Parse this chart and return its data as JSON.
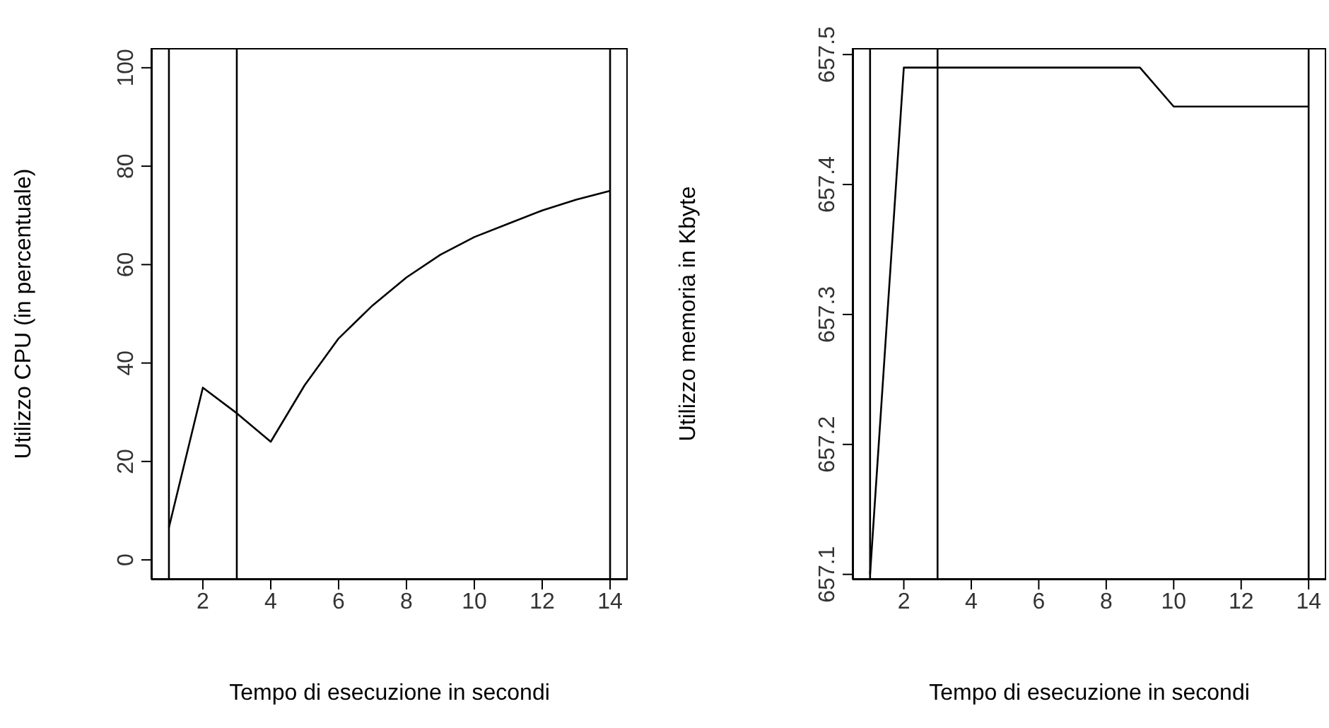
{
  "chart_data": [
    {
      "type": "line",
      "xlabel": "Tempo di esecuzione in secondi",
      "ylabel": "Utilizzo CPU (in percentuale)",
      "x": [
        1,
        2,
        3,
        4,
        5,
        6,
        7,
        8,
        9,
        10,
        11,
        12,
        13,
        14
      ],
      "series": [
        {
          "color": "#000000",
          "values": [
            6.6,
            35,
            29.8,
            24,
            35.5,
            45,
            51.7,
            57.4,
            62,
            65.6,
            68.3,
            71,
            73.2,
            75
          ]
        }
      ],
      "xlim": [
        0.48,
        14.52
      ],
      "xticks": [
        2,
        4,
        6,
        8,
        10,
        12,
        14
      ],
      "ylim": [
        -4,
        104
      ],
      "yticks": [
        0,
        20,
        40,
        60,
        80,
        100
      ],
      "grid": false,
      "marker": "none",
      "line_style": "solid",
      "ref_lines": [
        {
          "axis": "x",
          "value": 1,
          "color": "#000000"
        },
        {
          "axis": "x",
          "value": 3,
          "color": "#000000"
        },
        {
          "axis": "x",
          "value": 14,
          "color": "#000000"
        }
      ]
    },
    {
      "type": "line",
      "xlabel": "Tempo di esecuzione in secondi",
      "ylabel": "Utilizzo memoria in Kbyte",
      "x": [
        1,
        2,
        3,
        4,
        5,
        6,
        7,
        8,
        9,
        10,
        11,
        12,
        13,
        14
      ],
      "series": [
        {
          "color": "#000000",
          "values": [
            657.1,
            657.49,
            657.49,
            657.49,
            657.49,
            657.49,
            657.49,
            657.49,
            657.49,
            657.46,
            657.46,
            657.46,
            657.46,
            657.46
          ]
        }
      ],
      "xlim": [
        0.48,
        14.52
      ],
      "xticks": [
        2,
        4,
        6,
        8,
        10,
        12,
        14
      ],
      "ylim": [
        657.096,
        657.505
      ],
      "yticks": [
        657.1,
        657.2,
        657.3,
        657.4,
        657.5
      ],
      "grid": false,
      "marker": "none",
      "line_style": "solid",
      "ref_lines": [
        {
          "axis": "x",
          "value": 1,
          "color": "#000000"
        },
        {
          "axis": "x",
          "value": 3,
          "color": "#000000"
        },
        {
          "axis": "x",
          "value": 14,
          "color": "#000000"
        }
      ]
    }
  ]
}
